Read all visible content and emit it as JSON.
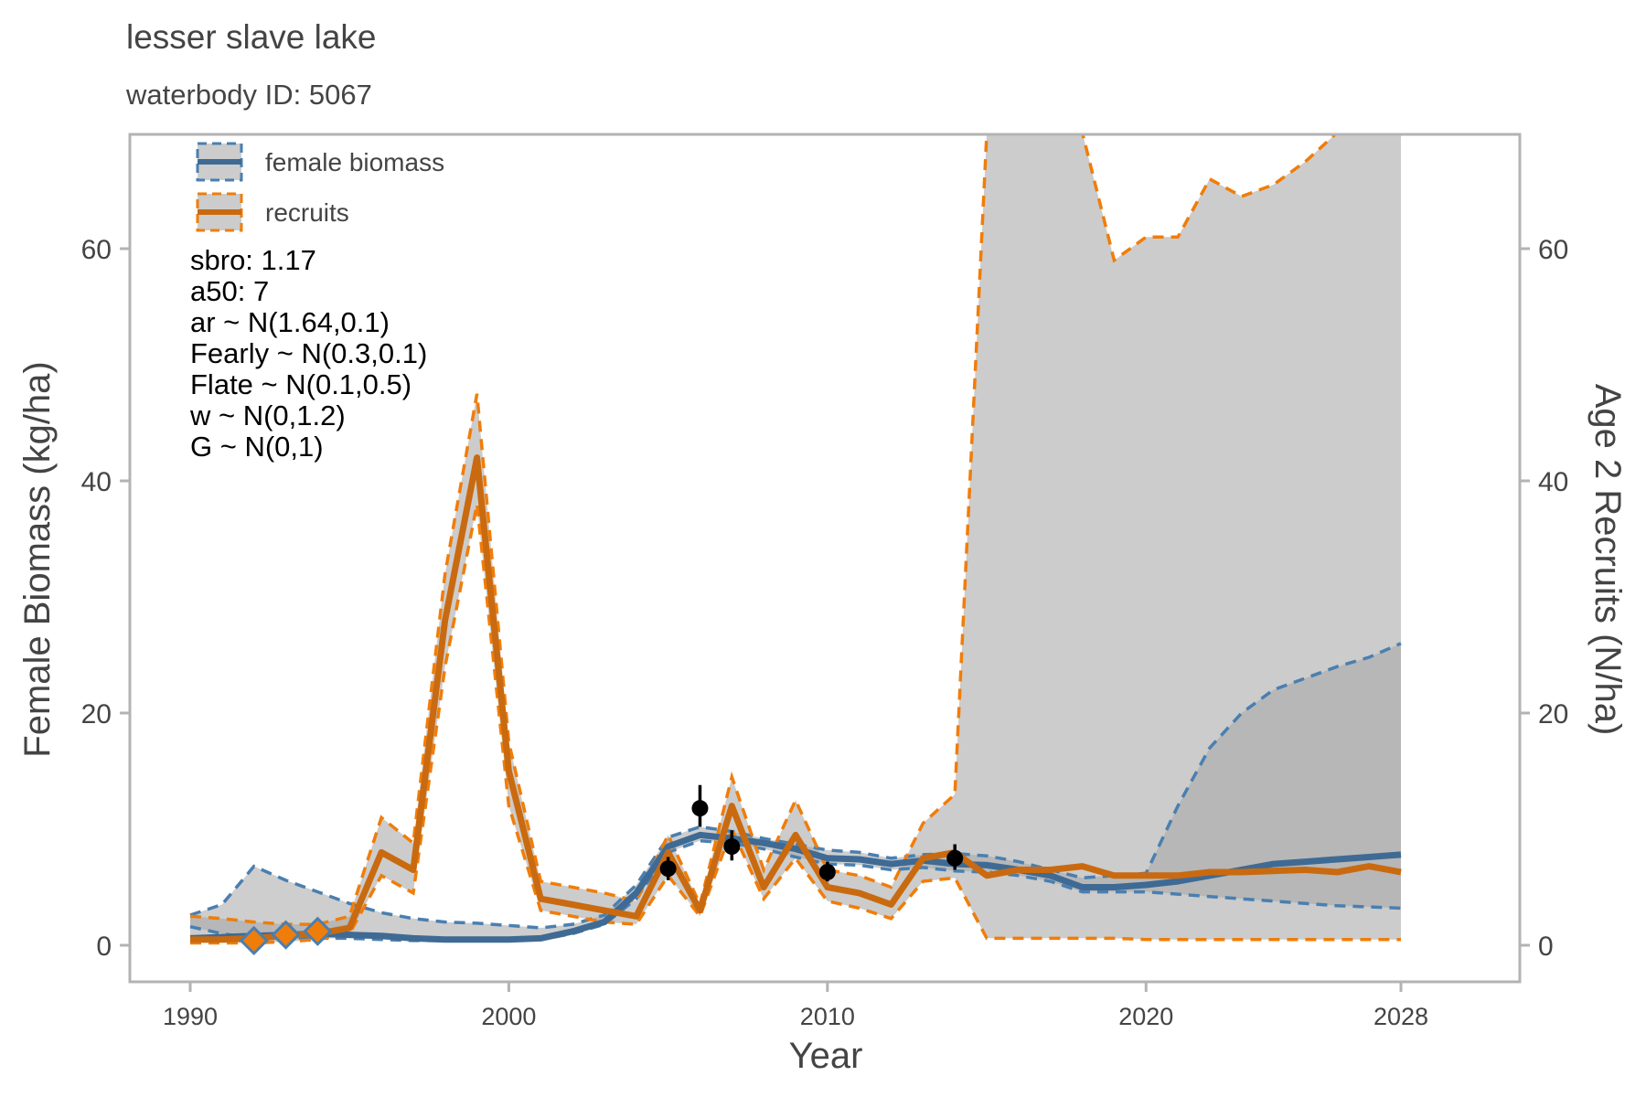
{
  "title": "lesser slave lake",
  "subtitle": "waterbody ID: 5067",
  "colors": {
    "biomass": "#3f6a94",
    "biomass_dash": "#4a7fb0",
    "recruits": "#c96a10",
    "recruits_dash": "#f07d0a",
    "band_light": "#cccccc",
    "band_dark": "#a6a6a6",
    "obs": "#000000"
  },
  "chart_data": {
    "type": "line",
    "xlabel": "Year",
    "ylabel_left": "Female Biomass (kg/ha)",
    "ylabel_right": "Age 2 Recruits (N/ha)",
    "xlim": [
      1990,
      2028
    ],
    "ylim": [
      0,
      70
    ],
    "x_ticks": [
      1990,
      2000,
      2010,
      2020,
      2028
    ],
    "y_ticks_left": [
      0,
      20,
      40,
      60
    ],
    "y_ticks_right": [
      0,
      20,
      40,
      60
    ],
    "legend": {
      "placement": "top-left",
      "entries": [
        "female biomass",
        "recruits"
      ]
    },
    "params": [
      "sbro: 1.17",
      "a50: 7",
      "ar ~ N(1.64,0.1)",
      "Fearly ~ N(0.3,0.1)",
      "Flate ~ N(0.1,0.5)",
      "w ~ N(0,1.2)",
      "G ~ N(0,1)"
    ],
    "years": [
      1990,
      1991,
      1992,
      1993,
      1994,
      1995,
      1996,
      1997,
      1998,
      1999,
      2000,
      2001,
      2002,
      2003,
      2004,
      2005,
      2006,
      2007,
      2008,
      2009,
      2010,
      2011,
      2012,
      2013,
      2014,
      2015,
      2016,
      2017,
      2018,
      2019,
      2020,
      2021,
      2022,
      2023,
      2024,
      2025,
      2026,
      2027,
      2028
    ],
    "series": [
      {
        "name": "female biomass",
        "median": [
          0.6,
          0.7,
          0.8,
          0.9,
          1.0,
          0.9,
          0.8,
          0.6,
          0.5,
          0.5,
          0.5,
          0.6,
          1.2,
          2.0,
          4.5,
          8.5,
          9.5,
          9.2,
          8.8,
          8.3,
          7.5,
          7.4,
          7.0,
          7.3,
          7.0,
          6.9,
          6.5,
          6.0,
          5.0,
          5.0,
          5.2,
          5.5,
          6.0,
          6.5,
          7.0,
          7.2,
          7.4,
          7.6,
          7.8
        ],
        "lower": [
          1.6,
          1.0,
          0.6,
          0.6,
          0.6,
          0.6,
          0.5,
          0.4,
          0.4,
          0.4,
          0.4,
          0.5,
          1.0,
          1.8,
          4.0,
          8.0,
          9.0,
          8.8,
          8.3,
          7.6,
          7.0,
          6.9,
          6.5,
          6.7,
          6.4,
          6.3,
          6.0,
          5.5,
          4.6,
          4.6,
          4.6,
          4.4,
          4.2,
          4.0,
          3.8,
          3.6,
          3.4,
          3.3,
          3.2
        ],
        "upper": [
          2.6,
          3.5,
          6.8,
          5.6,
          4.6,
          3.6,
          2.8,
          2.3,
          2.0,
          1.9,
          1.7,
          1.5,
          1.8,
          2.6,
          5.2,
          9.3,
          10.2,
          9.8,
          9.2,
          8.7,
          8.2,
          8.0,
          7.5,
          7.8,
          7.9,
          7.7,
          7.2,
          6.5,
          5.8,
          6.0,
          6.2,
          12.0,
          17.0,
          20.0,
          22.0,
          23.0,
          24.0,
          24.8,
          26.0
        ]
      },
      {
        "name": "recruits",
        "median": [
          0.5,
          0.5,
          0.6,
          0.8,
          1.0,
          1.5,
          8.0,
          6.5,
          28.0,
          42.0,
          15.0,
          4.0,
          3.5,
          3.0,
          2.5,
          8.0,
          3.0,
          12.0,
          5.0,
          9.5,
          5.0,
          4.5,
          3.5,
          7.5,
          8.0,
          6.0,
          6.5,
          6.5,
          6.8,
          6.0,
          6.0,
          6.0,
          6.3,
          6.3,
          6.4,
          6.5,
          6.3,
          6.8,
          6.3
        ],
        "lower": [
          0.2,
          0.2,
          0.2,
          0.3,
          0.5,
          1.0,
          6.0,
          4.5,
          24.0,
          38.0,
          12.0,
          3.0,
          2.5,
          2.0,
          1.8,
          6.0,
          2.5,
          10.0,
          4.0,
          7.5,
          3.8,
          3.2,
          2.3,
          5.5,
          5.8,
          0.6,
          0.6,
          0.6,
          0.6,
          0.6,
          0.5,
          0.5,
          0.5,
          0.5,
          0.5,
          0.5,
          0.5,
          0.5,
          0.5
        ],
        "upper": [
          2.5,
          2.3,
          2.0,
          1.8,
          1.8,
          2.5,
          11.0,
          8.8,
          32.0,
          47.5,
          17.5,
          5.5,
          5.0,
          4.5,
          3.8,
          9.5,
          3.5,
          14.5,
          6.5,
          12.5,
          6.5,
          6.0,
          5.0,
          10.5,
          13.0,
          70,
          70,
          70,
          70,
          59.0,
          61.0,
          61.0,
          66.0,
          64.5,
          65.5,
          67.5,
          70,
          70,
          70
        ]
      }
    ],
    "recruit_observations": [
      {
        "x": 1992,
        "y": 0.4
      },
      {
        "x": 1993,
        "y": 0.9
      },
      {
        "x": 1994,
        "y": 1.2
      }
    ],
    "biomass_observations": [
      {
        "x": 2005,
        "y": 6.6,
        "lo": 5.6,
        "hi": 7.6
      },
      {
        "x": 2006,
        "y": 11.8,
        "lo": 10.2,
        "hi": 13.8
      },
      {
        "x": 2007,
        "y": 8.5,
        "lo": 7.3,
        "hi": 9.9
      },
      {
        "x": 2010,
        "y": 6.3,
        "lo": 5.5,
        "hi": 7.2
      },
      {
        "x": 2014,
        "y": 7.5,
        "lo": 6.5,
        "hi": 8.7
      }
    ]
  }
}
